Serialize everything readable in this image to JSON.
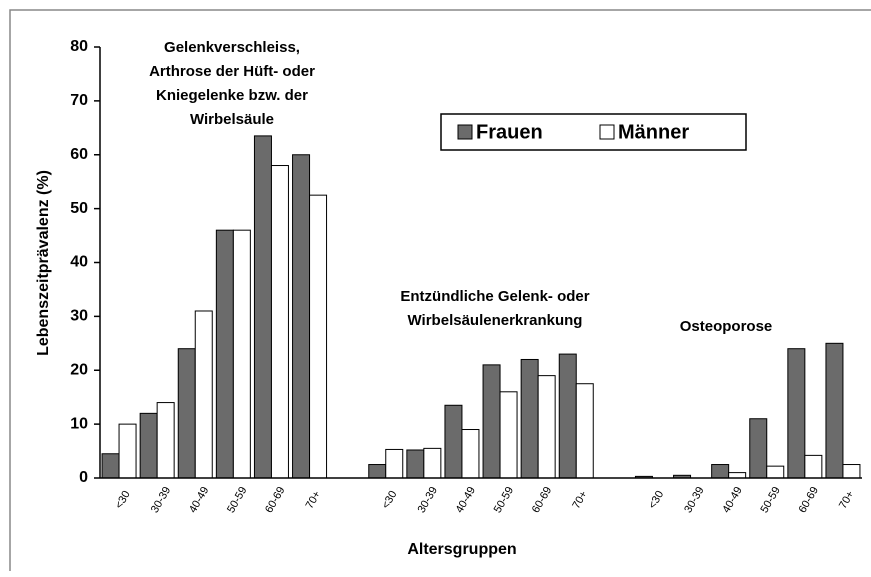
{
  "chart_data": {
    "type": "bar",
    "y_label": "Lebenszeitprävalenz (%)",
    "x_label": "Altersgruppen",
    "categories": [
      "<30",
      "30-39",
      "40-49",
      "50-59",
      "60-69",
      "70+",
      null,
      "<30",
      "30-39",
      "40-49",
      "50-59",
      "60-69",
      "70+",
      null,
      "<30",
      "30-39",
      "40-49",
      "50-59",
      "60-69",
      "70+"
    ],
    "series": [
      {
        "name": "Frauen",
        "color": "#6b6b6b",
        "values": [
          4.5,
          12,
          24,
          46,
          63.5,
          60,
          null,
          2.5,
          5.2,
          13.5,
          21,
          22,
          23,
          null,
          0.3,
          0.5,
          2.5,
          11,
          24,
          25
        ]
      },
      {
        "name": "Männer",
        "color": "#ffffff",
        "values": [
          10,
          14,
          31,
          46,
          58,
          52.5,
          null,
          5.3,
          5.5,
          9,
          16,
          19,
          17.5,
          null,
          0,
          0,
          1,
          2.2,
          4.2,
          2.5
        ]
      }
    ],
    "annotations": [
      [
        "Gelenkverschleiss,",
        "Arthrose der Hüft- oder",
        "Kniegelenke bzw. der",
        "Wirbelsäule"
      ],
      [
        "Entzündliche Gelenk- oder",
        "Wirbelsäulenerkrankung"
      ],
      [
        "Osteoporose"
      ]
    ],
    "ylim": [
      0,
      80
    ],
    "yticks": [
      0,
      10,
      20,
      30,
      40,
      50,
      60,
      70,
      80
    ],
    "legend": "top-right"
  }
}
